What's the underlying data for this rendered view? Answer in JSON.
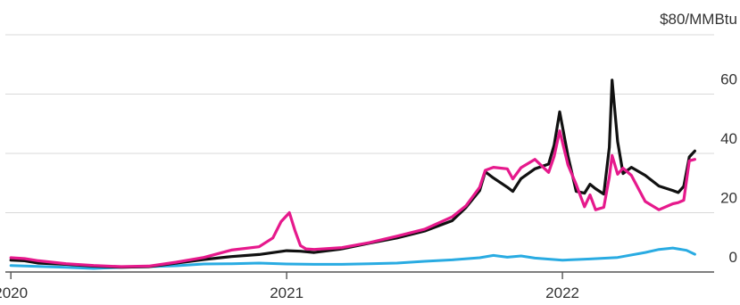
{
  "chart_data": {
    "type": "line",
    "title": "",
    "xlabel": "",
    "ylabel": "",
    "y_unit_label": "$80/MMBtu",
    "ylim": [
      0,
      80
    ],
    "xlim": [
      2019.98,
      2022.55
    ],
    "x_ticks": [
      {
        "value": 2020.0,
        "label": "2020"
      },
      {
        "value": 2021.0,
        "label": "2021"
      },
      {
        "value": 2022.0,
        "label": "2022"
      }
    ],
    "y_ticks": [
      {
        "value": 0,
        "label": "0"
      },
      {
        "value": 20,
        "label": "20"
      },
      {
        "value": 40,
        "label": "40"
      },
      {
        "value": 60,
        "label": "60"
      },
      {
        "value": 80,
        "label": ""
      }
    ],
    "grid": true,
    "legend": "none",
    "series": [
      {
        "color": "#29abe2",
        "x": [
          2020.0,
          2020.1,
          2020.2,
          2020.3,
          2020.4,
          2020.5,
          2020.6,
          2020.7,
          2020.8,
          2020.9,
          2021.0,
          2021.1,
          2021.2,
          2021.3,
          2021.4,
          2021.5,
          2021.6,
          2021.7,
          2021.75,
          2021.8,
          2021.85,
          2021.9,
          2022.0,
          2022.1,
          2022.2,
          2022.3,
          2022.35,
          2022.4,
          2022.45,
          2022.48
        ],
        "y": [
          2.2,
          1.9,
          1.6,
          1.2,
          1.6,
          1.8,
          2.1,
          2.7,
          2.8,
          3.0,
          2.7,
          2.6,
          2.6,
          2.8,
          3.0,
          3.6,
          4.1,
          4.8,
          5.6,
          5.0,
          5.4,
          4.7,
          4.0,
          4.4,
          4.9,
          6.6,
          7.6,
          8.1,
          7.3,
          6.0
        ]
      },
      {
        "color": "#111111",
        "x": [
          2020.0,
          2020.05,
          2020.1,
          2020.2,
          2020.3,
          2020.4,
          2020.5,
          2020.6,
          2020.7,
          2020.8,
          2020.9,
          2021.0,
          2021.05,
          2021.1,
          2021.2,
          2021.3,
          2021.4,
          2021.5,
          2021.6,
          2021.65,
          2021.7,
          2021.72,
          2021.75,
          2021.8,
          2021.82,
          2021.85,
          2021.9,
          2021.95,
          2021.97,
          2021.99,
          2022.02,
          2022.05,
          2022.08,
          2022.1,
          2022.12,
          2022.15,
          2022.17,
          2022.18,
          2022.2,
          2022.22,
          2022.25,
          2022.3,
          2022.35,
          2022.4,
          2022.42,
          2022.44,
          2022.46,
          2022.48
        ],
        "y": [
          4.0,
          3.8,
          3.0,
          2.6,
          2.0,
          1.6,
          1.8,
          3.0,
          4.2,
          5.2,
          5.9,
          7.2,
          7.0,
          6.6,
          7.8,
          9.7,
          11.5,
          13.8,
          17.3,
          21.7,
          27.5,
          33.8,
          31.7,
          28.6,
          27.2,
          31.5,
          34.8,
          36.4,
          42.8,
          54.0,
          39.1,
          27.2,
          26.6,
          29.6,
          28.1,
          26.3,
          42.0,
          64.7,
          44.0,
          33.2,
          35.3,
          32.6,
          29.0,
          27.5,
          26.8,
          28.9,
          38.8,
          40.8
        ]
      },
      {
        "color": "#e6198c",
        "x": [
          2020.0,
          2020.05,
          2020.1,
          2020.2,
          2020.3,
          2020.4,
          2020.5,
          2020.6,
          2020.7,
          2020.8,
          2020.9,
          2020.95,
          2020.98,
          2021.01,
          2021.03,
          2021.05,
          2021.07,
          2021.1,
          2021.2,
          2021.3,
          2021.4,
          2021.5,
          2021.6,
          2021.65,
          2021.7,
          2021.72,
          2021.75,
          2021.8,
          2021.82,
          2021.85,
          2021.9,
          2021.95,
          2021.97,
          2021.99,
          2022.02,
          2022.05,
          2022.08,
          2022.1,
          2022.12,
          2022.15,
          2022.17,
          2022.18,
          2022.2,
          2022.22,
          2022.25,
          2022.3,
          2022.35,
          2022.4,
          2022.42,
          2022.44,
          2022.46,
          2022.48
        ],
        "y": [
          4.8,
          4.5,
          3.8,
          2.8,
          2.2,
          1.8,
          2.0,
          3.3,
          4.9,
          7.4,
          8.5,
          11.5,
          17.0,
          20.0,
          14.0,
          8.9,
          7.8,
          7.6,
          8.2,
          9.9,
          12.1,
          14.4,
          18.6,
          22.3,
          28.6,
          34.3,
          35.3,
          34.8,
          31.4,
          35.2,
          38.0,
          33.6,
          39.0,
          47.6,
          36.1,
          29.5,
          22.0,
          26.0,
          21.0,
          21.8,
          32.0,
          39.3,
          33.0,
          35.0,
          32.6,
          23.8,
          21.0,
          23.0,
          23.4,
          24.2,
          37.5,
          38.0
        ]
      }
    ]
  }
}
